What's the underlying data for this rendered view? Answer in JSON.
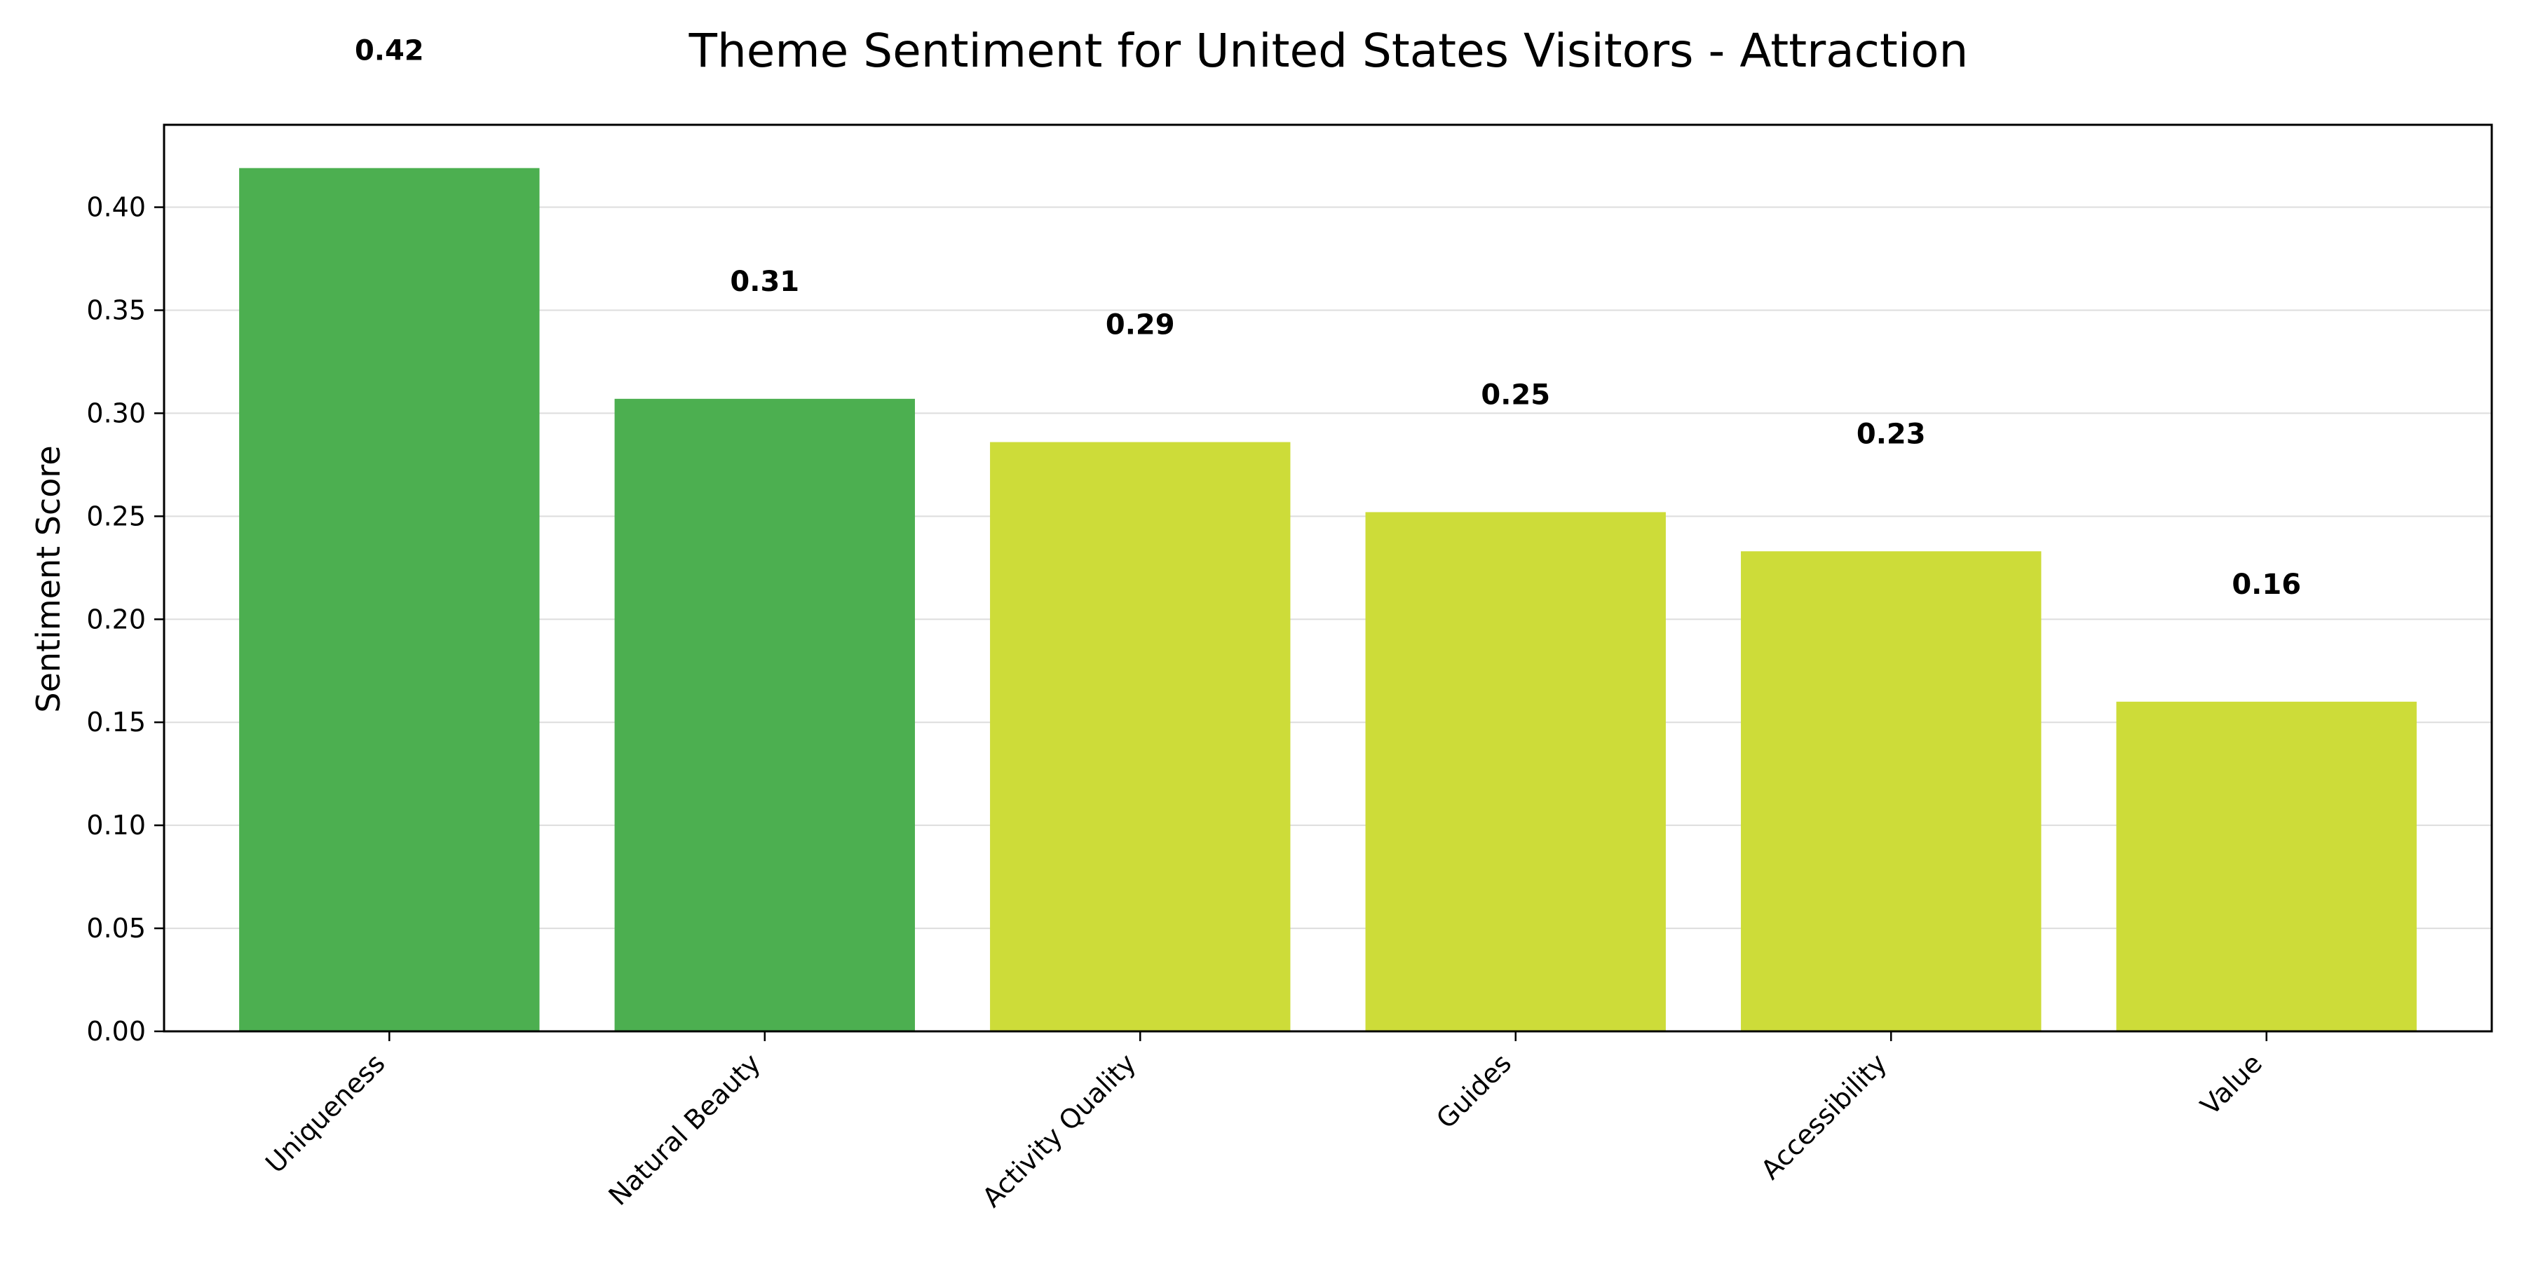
{
  "chart_data": {
    "type": "bar",
    "title": "Theme Sentiment for United States Visitors - Attraction",
    "xlabel": "",
    "ylabel": "Sentiment Score",
    "categories": [
      "Uniqueness",
      "Natural Beauty",
      "Activity Quality",
      "Guides",
      "Accessibility",
      "Value"
    ],
    "values": [
      0.419,
      0.307,
      0.286,
      0.252,
      0.233,
      0.16
    ],
    "data_labels": [
      "0.42",
      "0.31",
      "0.29",
      "0.25",
      "0.23",
      "0.16"
    ],
    "bar_colors": [
      "#4caf50",
      "#4caf50",
      "#cddc39",
      "#cddc39",
      "#cddc39",
      "#cddc39"
    ],
    "ylim": [
      0,
      0.44
    ],
    "yticks": [
      0.0,
      0.05,
      0.1,
      0.15,
      0.2,
      0.25,
      0.3,
      0.35,
      0.4
    ],
    "ytick_labels": [
      "0.00",
      "0.05",
      "0.10",
      "0.15",
      "0.20",
      "0.25",
      "0.30",
      "0.35",
      "0.40"
    ],
    "grid": "y",
    "legend": "none"
  }
}
